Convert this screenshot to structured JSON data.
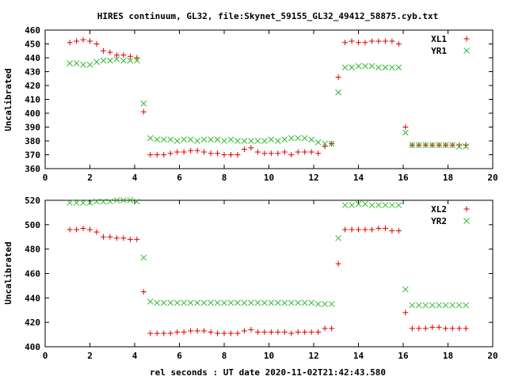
{
  "title": "HIRES continuum, GL32, file:Skynet_59155_GL32_49412_58875.cyb.txt",
  "xlabel": "rel seconds : UT date 2020-11-02T21:42:43.580",
  "colors": {
    "red": "#dd0000",
    "green": "#33bb33",
    "axis": "#000000"
  },
  "chart_data": [
    {
      "type": "scatter",
      "ylabel": "Uncalibrated",
      "xlim": [
        0,
        20
      ],
      "ylim": [
        360,
        460
      ],
      "xticks": [
        0,
        2,
        4,
        6,
        8,
        10,
        12,
        14,
        16,
        18,
        20
      ],
      "yticks": [
        360,
        370,
        380,
        390,
        400,
        410,
        420,
        430,
        440,
        450,
        460
      ],
      "legend_position": "top-right",
      "series": [
        {
          "name": "XL1",
          "marker": "plus",
          "color": "#dd0000",
          "x": [
            1.1,
            1.4,
            1.7,
            2.0,
            2.3,
            2.6,
            2.9,
            3.2,
            3.5,
            3.8,
            4.1,
            4.4,
            4.7,
            5.0,
            5.3,
            5.6,
            5.9,
            6.2,
            6.5,
            6.8,
            7.1,
            7.4,
            7.7,
            8.0,
            8.3,
            8.6,
            8.9,
            9.2,
            9.5,
            9.8,
            10.1,
            10.4,
            10.7,
            11.0,
            11.3,
            11.6,
            11.9,
            12.2,
            12.5,
            12.8,
            13.1,
            13.4,
            13.7,
            14.0,
            14.3,
            14.6,
            14.9,
            15.2,
            15.5,
            15.8,
            16.1,
            16.4,
            16.7,
            17.0,
            17.3,
            17.6,
            17.9,
            18.2,
            18.5,
            18.8
          ],
          "y": [
            451,
            452,
            453,
            452,
            450,
            445,
            444,
            442,
            442,
            441,
            440,
            401,
            370,
            370,
            370,
            371,
            372,
            372,
            373,
            373,
            372,
            371,
            371,
            370,
            370,
            370,
            374,
            375,
            372,
            371,
            371,
            371,
            372,
            370,
            372,
            372,
            372,
            371,
            376,
            378,
            426,
            451,
            452,
            451,
            451,
            452,
            452,
            452,
            452,
            450,
            390,
            377,
            377,
            377,
            377,
            377,
            377,
            377,
            377,
            377
          ]
        },
        {
          "name": "YR1",
          "marker": "cross",
          "color": "#33bb33",
          "x": [
            1.1,
            1.4,
            1.7,
            2.0,
            2.3,
            2.6,
            2.9,
            3.2,
            3.5,
            3.8,
            4.1,
            4.4,
            4.7,
            5.0,
            5.3,
            5.6,
            5.9,
            6.2,
            6.5,
            6.8,
            7.1,
            7.4,
            7.7,
            8.0,
            8.3,
            8.6,
            8.9,
            9.2,
            9.5,
            9.8,
            10.1,
            10.4,
            10.7,
            11.0,
            11.3,
            11.6,
            11.9,
            12.2,
            12.5,
            12.8,
            13.1,
            13.4,
            13.7,
            14.0,
            14.3,
            14.6,
            14.9,
            15.2,
            15.5,
            15.8,
            16.1,
            16.4,
            16.7,
            17.0,
            17.3,
            17.6,
            17.9,
            18.2,
            18.5,
            18.8
          ],
          "y": [
            436,
            436,
            435,
            435,
            437,
            438,
            438,
            439,
            438,
            438,
            438,
            407,
            382,
            381,
            381,
            381,
            380,
            381,
            381,
            380,
            381,
            381,
            381,
            380,
            381,
            380,
            380,
            380,
            380,
            380,
            381,
            380,
            381,
            382,
            382,
            382,
            381,
            379,
            378,
            378,
            415,
            433,
            433,
            434,
            434,
            434,
            433,
            433,
            433,
            433,
            386,
            377,
            377,
            377,
            377,
            377,
            377,
            377,
            376,
            376
          ]
        }
      ]
    },
    {
      "type": "scatter",
      "ylabel": "Uncalibrated",
      "xlim": [
        0,
        20
      ],
      "ylim": [
        400,
        520
      ],
      "xticks": [
        0,
        2,
        4,
        6,
        8,
        10,
        12,
        14,
        16,
        18,
        20
      ],
      "yticks": [
        400,
        420,
        440,
        460,
        480,
        500,
        520
      ],
      "legend_position": "top-right",
      "series": [
        {
          "name": "XL2",
          "marker": "plus",
          "color": "#dd0000",
          "x": [
            1.1,
            1.4,
            1.7,
            2.0,
            2.3,
            2.6,
            2.9,
            3.2,
            3.5,
            3.8,
            4.1,
            4.4,
            4.7,
            5.0,
            5.3,
            5.6,
            5.9,
            6.2,
            6.5,
            6.8,
            7.1,
            7.4,
            7.7,
            8.0,
            8.3,
            8.6,
            8.9,
            9.2,
            9.5,
            9.8,
            10.1,
            10.4,
            10.7,
            11.0,
            11.3,
            11.6,
            11.9,
            12.2,
            12.5,
            12.8,
            13.1,
            13.4,
            13.7,
            14.0,
            14.3,
            14.6,
            14.9,
            15.2,
            15.5,
            15.8,
            16.1,
            16.4,
            16.7,
            17.0,
            17.3,
            17.6,
            17.9,
            18.2,
            18.5,
            18.8
          ],
          "y": [
            496,
            496,
            497,
            496,
            494,
            490,
            490,
            489,
            489,
            488,
            488,
            445,
            411,
            411,
            411,
            411,
            412,
            412,
            413,
            413,
            413,
            412,
            411,
            411,
            411,
            411,
            413,
            414,
            412,
            412,
            412,
            412,
            412,
            411,
            412,
            412,
            412,
            412,
            415,
            415,
            468,
            496,
            496,
            496,
            496,
            496,
            497,
            497,
            495,
            495,
            428,
            415,
            415,
            415,
            416,
            416,
            415,
            415,
            415,
            415
          ]
        },
        {
          "name": "YR2",
          "marker": "cross",
          "color": "#33bb33",
          "x": [
            1.1,
            1.4,
            1.7,
            2.0,
            2.3,
            2.6,
            2.9,
            3.2,
            3.5,
            3.8,
            4.1,
            4.4,
            4.7,
            5.0,
            5.3,
            5.6,
            5.9,
            6.2,
            6.5,
            6.8,
            7.1,
            7.4,
            7.7,
            8.0,
            8.3,
            8.6,
            8.9,
            9.2,
            9.5,
            9.8,
            10.1,
            10.4,
            10.7,
            11.0,
            11.3,
            11.6,
            11.9,
            12.2,
            12.5,
            12.8,
            13.1,
            13.4,
            13.7,
            14.0,
            14.3,
            14.6,
            14.9,
            15.2,
            15.5,
            15.8,
            16.1,
            16.4,
            16.7,
            17.0,
            17.3,
            17.6,
            17.9,
            18.2,
            18.5,
            18.8
          ],
          "y": [
            518,
            518,
            518,
            518,
            519,
            519,
            519,
            520,
            520,
            520,
            519,
            473,
            437,
            436,
            436,
            436,
            436,
            436,
            436,
            436,
            436,
            436,
            436,
            436,
            436,
            436,
            436,
            436,
            436,
            436,
            436,
            436,
            436,
            436,
            436,
            436,
            436,
            435,
            435,
            435,
            489,
            516,
            516,
            517,
            517,
            516,
            516,
            516,
            516,
            516,
            447,
            434,
            434,
            434,
            434,
            434,
            434,
            434,
            434,
            434
          ]
        }
      ]
    }
  ]
}
